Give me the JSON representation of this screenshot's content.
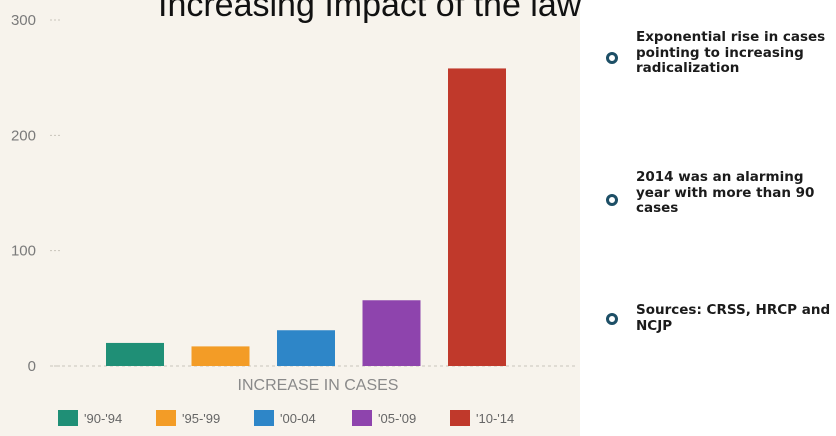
{
  "chart_data": {
    "type": "bar",
    "title": "Increasing Impact of the law",
    "xlabel": "INCREASE IN CASES",
    "ylabel": "",
    "categories": [
      "'90-'94",
      "'95-'99",
      "'00-04",
      "'05-'09",
      "'10-'14"
    ],
    "values": [
      20,
      17,
      31,
      57,
      258
    ],
    "colors": [
      "#1f8f76",
      "#f39c26",
      "#2e86c8",
      "#8e44ad",
      "#c0392b"
    ],
    "ylim": [
      0,
      300
    ],
    "yticks": [
      0,
      100,
      200,
      300
    ],
    "grid": false,
    "legend": "bottom"
  },
  "notes": [
    {
      "text": "Exponential rise in cases pointing to increasing radicalization",
      "icon": "circle-bullet-icon"
    },
    {
      "text": "2014 was an alarming year with more than 90 cases",
      "icon": "circle-bullet-icon"
    },
    {
      "text": "Sources: CRSS, HRCP and NCJP",
      "icon": "circle-bullet-icon"
    }
  ]
}
